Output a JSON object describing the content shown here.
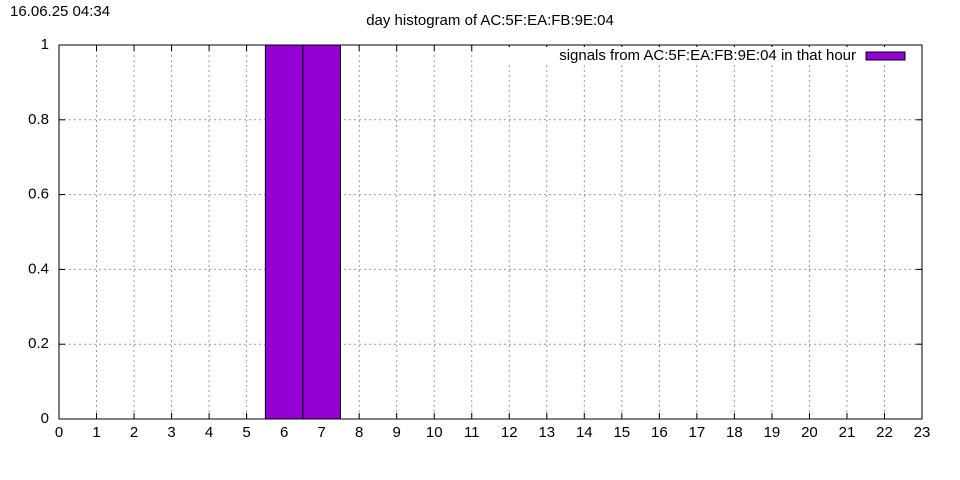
{
  "timestamp": "16.06.25 04:34",
  "chart_data": {
    "type": "bar",
    "title": "day histogram of AC:5F:EA:FB:9E:04",
    "series": [
      {
        "name": "signals from AC:5F:EA:FB:9E:04 in that hour",
        "color": "#9400d3",
        "x": [
          6,
          7
        ],
        "values": [
          1,
          1
        ]
      }
    ],
    "xlim": [
      0,
      23
    ],
    "xticks": [
      0,
      1,
      2,
      3,
      4,
      5,
      6,
      7,
      8,
      9,
      10,
      11,
      12,
      13,
      14,
      15,
      16,
      17,
      18,
      19,
      20,
      21,
      22,
      23
    ],
    "ylim": [
      0,
      1
    ],
    "yticks": [
      0,
      0.2,
      0.4,
      0.6,
      0.8,
      1
    ],
    "grid": true,
    "legend": "top-right"
  }
}
